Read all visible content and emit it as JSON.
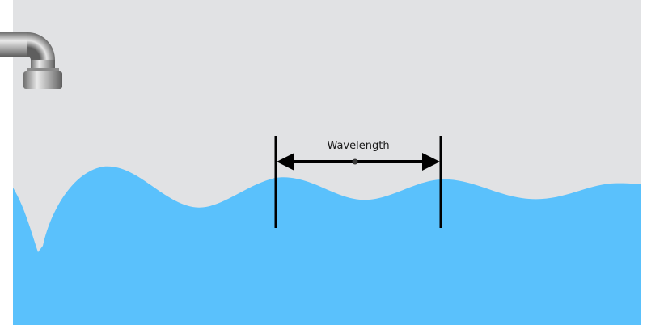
{
  "scene": {
    "annotation": {
      "label": "Wavelength"
    },
    "colors": {
      "tank_background": "#e1e2e4",
      "water": "#5ac1fc",
      "marker": "#000000",
      "faucet": "#9a9a9a"
    },
    "icons": {
      "faucet": "faucet-icon",
      "arrow": "double-arrow-icon"
    }
  }
}
